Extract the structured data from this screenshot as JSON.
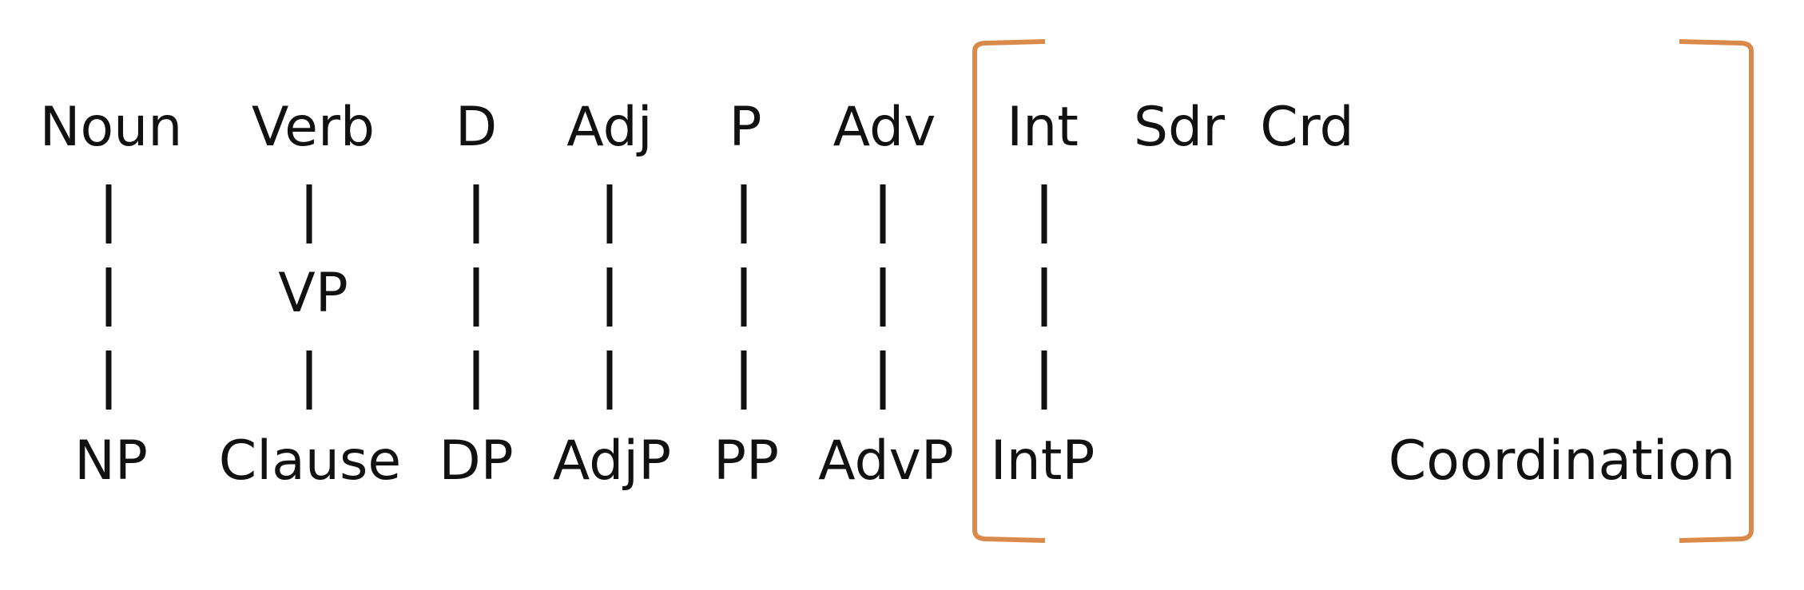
{
  "colors": {
    "text": "#111111",
    "bracket": "#D98A4A",
    "background": "#ffffff"
  },
  "columns": [
    {
      "id": "noun",
      "top": "Noun",
      "middle": "",
      "bottom": "NP"
    },
    {
      "id": "verb",
      "top": "Verb",
      "middle": "VP",
      "bottom": "Clause"
    },
    {
      "id": "d",
      "top": "D",
      "middle": "",
      "bottom": "DP"
    },
    {
      "id": "adj",
      "top": "Adj",
      "middle": "",
      "bottom": "AdjP"
    },
    {
      "id": "p",
      "top": "P",
      "middle": "",
      "bottom": "PP"
    },
    {
      "id": "adv",
      "top": "Adv",
      "middle": "",
      "bottom": "AdvP"
    },
    {
      "id": "int",
      "top": "Int",
      "middle": "",
      "bottom": "IntP"
    }
  ],
  "extra_top_labels": {
    "sdr": "Sdr",
    "crd": "Crd"
  },
  "coordination_label": "Coordination"
}
